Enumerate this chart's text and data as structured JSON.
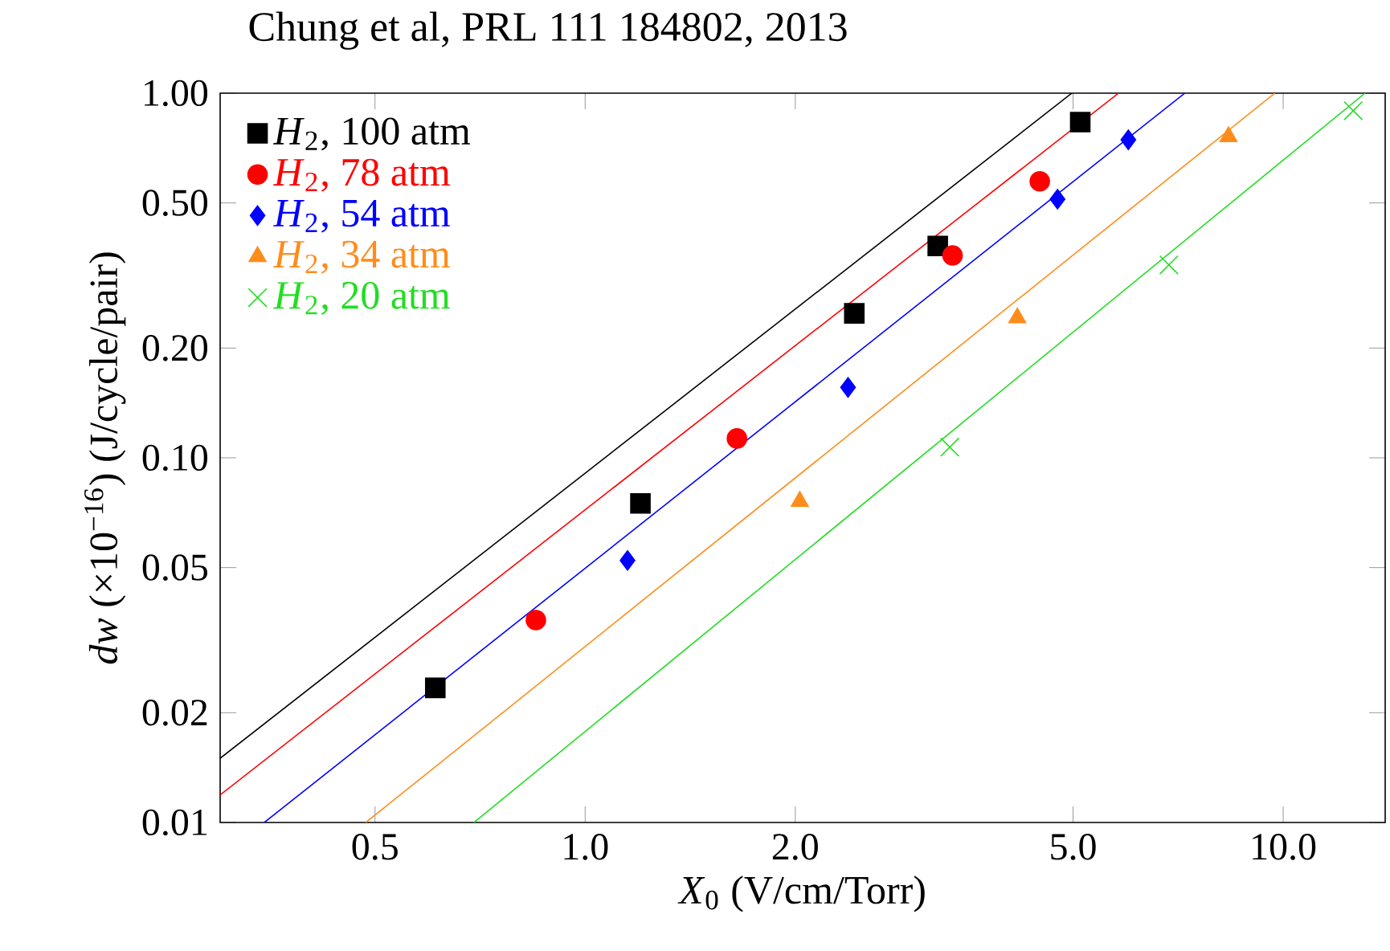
{
  "chart_data": {
    "type": "scatter",
    "title": "Chung et al, PRL 111 184802, 2013",
    "xlabel": "*X*$_{0}$ (V/cm/Torr)",
    "ylabel": "*dw* (×10$^{−16}$) (J/cycle/pair)",
    "log": "xy",
    "xlim": [
      0.3,
      14
    ],
    "ylim": [
      0.01,
      1
    ],
    "xticks": [
      0.5,
      {
        "value": 1,
        "label": "1.0"
      },
      {
        "value": 2,
        "label": "2.0"
      },
      {
        "value": 5,
        "label": "5.0"
      },
      {
        "value": 10,
        "label": "10.0"
      }
    ],
    "yticks": [
      {
        "value": 0.01,
        "label": "0.01"
      },
      {
        "value": 0.02,
        "label": "0.02"
      },
      {
        "value": 0.05,
        "label": "0.05"
      },
      {
        "value": 0.1,
        "label": "0.10"
      },
      {
        "value": 0.2,
        "label": "0.20"
      },
      {
        "value": 0.5,
        "label": "0.50"
      },
      {
        "value": 1,
        "label": "1.00"
      }
    ],
    "legend": "top left",
    "series": [
      {
        "name": "*H*$_{2}$, 100 atm",
        "color": "#000000",
        "marker": "square",
        "x": [
          0.61,
          1.2,
          2.43,
          3.2,
          5.12
        ],
        "values": [
          0.0234,
          0.075,
          0.249,
          0.381,
          0.833
        ]
      },
      {
        "name": "*H*$_{2}$, 78 atm",
        "color": "#ff0000",
        "marker": "circle",
        "x": [
          0.85,
          1.65,
          3.36,
          4.48
        ],
        "values": [
          0.0359,
          0.113,
          0.359,
          0.573
        ]
      },
      {
        "name": "*H*$_{2}$, 54 atm",
        "color": "#0000ff",
        "marker": "diamond",
        "x": [
          1.15,
          2.38,
          4.75,
          6.0
        ],
        "values": [
          0.0523,
          0.156,
          0.512,
          0.745
        ]
      },
      {
        "name": "*H*$_{2}$, 34 atm",
        "color": "#ff8c1a",
        "marker": "triangle",
        "x": [
          2.03,
          4.16,
          8.35
        ],
        "values": [
          0.076,
          0.242,
          0.76
        ]
      },
      {
        "name": "*H*$_{2}$, 20 atm",
        "color": "#22dd22",
        "marker": "cross",
        "x": [
          3.33,
          6.86,
          12.6
        ],
        "values": [
          0.107,
          0.338,
          0.895
        ]
      },
      {
        "type": "line",
        "color": "#000000",
        "marker": "none",
        "line_style": "solid",
        "x": [
          0.3,
          4.98
        ],
        "values": [
          0.015,
          1.0
        ]
      },
      {
        "type": "line",
        "color": "#ff0000",
        "marker": "none",
        "line_style": "solid",
        "x": [
          0.3,
          5.81
        ],
        "values": [
          0.0119,
          1.0
        ]
      },
      {
        "type": "line",
        "color": "#0000ff",
        "marker": "none",
        "line_style": "solid",
        "x": [
          0.347,
          7.23
        ],
        "values": [
          0.01,
          1.0
        ]
      },
      {
        "type": "line",
        "color": "#ff8c1a",
        "marker": "none",
        "line_style": "solid",
        "x": [
          0.485,
          9.73
        ],
        "values": [
          0.01,
          1.0
        ]
      },
      {
        "type": "line",
        "color": "#22dd22",
        "marker": "none",
        "line_style": "solid",
        "x": [
          0.693,
          13.1
        ],
        "values": [
          0.01,
          1.0
        ]
      }
    ]
  }
}
